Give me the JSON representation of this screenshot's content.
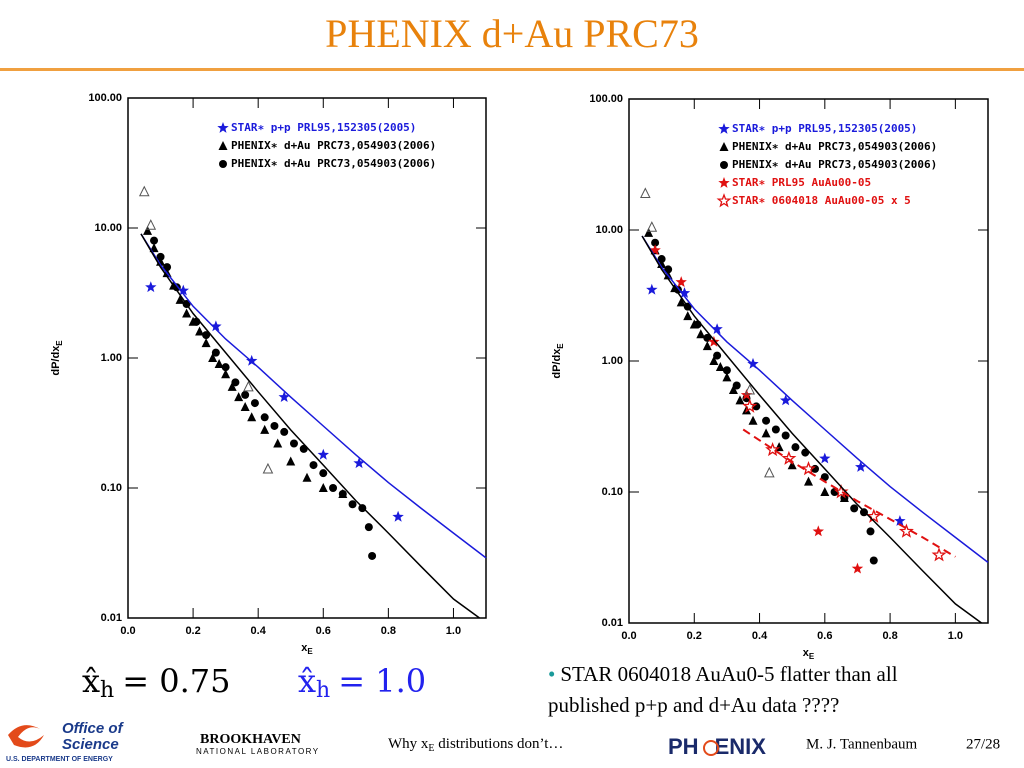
{
  "title": "PHENIX d+Au PRC73",
  "chart_data": [
    {
      "type": "scatter",
      "log_y": true,
      "xlabel": "x",
      "xlabel_sub": "E",
      "ylabel": "dP/dx",
      "ylabel_sub": "E",
      "xlim": [
        0,
        1.1
      ],
      "ylim": [
        0.01,
        100
      ],
      "xticks": [
        {
          "value": 0,
          "label": "0.0"
        },
        0.2,
        0.4,
        0.6,
        0.8,
        {
          "value": 1,
          "label": "1.0"
        }
      ],
      "yticks": [
        {
          "value": 0.01,
          "label": "0.01"
        },
        {
          "value": 0.1,
          "label": "0.10"
        },
        {
          "value": 1,
          "label": "1.00"
        },
        {
          "value": 10,
          "label": "10.00"
        },
        {
          "value": 100,
          "label": "100.00"
        }
      ],
      "legend": "upper right",
      "series": [
        {
          "name": "STAR∗ p+p PRL95,152305(2005)",
          "color": "#1a1adb",
          "marker": "star",
          "x": [
            0.07,
            0.17,
            0.27,
            0.38,
            0.48,
            0.6,
            0.71,
            0.83
          ],
          "values": [
            3.5,
            3.3,
            1.75,
            0.95,
            0.5,
            0.18,
            0.155,
            0.06
          ]
        },
        {
          "name": "PHENIX∗ d+Au PRC73,054903(2006)",
          "color": "#000000",
          "marker": "triangle",
          "x": [
            0.06,
            0.08,
            0.1,
            0.12,
            0.14,
            0.16,
            0.18,
            0.2,
            0.22,
            0.24,
            0.26,
            0.28,
            0.3,
            0.32,
            0.34,
            0.36,
            0.38,
            0.42,
            0.46,
            0.5,
            0.55,
            0.6,
            0.66
          ],
          "values": [
            9.5,
            7,
            5.5,
            4.5,
            3.6,
            2.8,
            2.2,
            1.9,
            1.6,
            1.3,
            1,
            0.9,
            0.75,
            0.6,
            0.5,
            0.42,
            0.35,
            0.28,
            0.22,
            0.16,
            0.12,
            0.1,
            0.09
          ]
        },
        {
          "name": "PHENIX∗ d+Au PRC73,054903(2006)",
          "color": "#000000",
          "marker": "circle",
          "x": [
            0.08,
            0.1,
            0.12,
            0.15,
            0.18,
            0.21,
            0.24,
            0.27,
            0.3,
            0.33,
            0.36,
            0.39,
            0.42,
            0.45,
            0.48,
            0.51,
            0.54,
            0.57,
            0.6,
            0.63,
            0.66,
            0.69,
            0.72,
            0.74,
            0.75
          ],
          "values": [
            8,
            6,
            5,
            3.5,
            2.6,
            1.9,
            1.5,
            1.1,
            0.85,
            0.65,
            0.52,
            0.45,
            0.35,
            0.3,
            0.27,
            0.22,
            0.2,
            0.15,
            0.13,
            0.1,
            0.09,
            0.075,
            0.07,
            0.05,
            0.03
          ]
        },
        {
          "color": "#555555",
          "marker": "open-triangle",
          "x": [
            0.05,
            0.07,
            0.37,
            0.43
          ],
          "values": [
            19,
            10.5,
            0.6,
            0.14
          ]
        },
        {
          "color": "#1a1adb",
          "marker": "line",
          "x": [
            0.04,
            0.1,
            0.2,
            0.3,
            0.4,
            0.5,
            0.6,
            0.7,
            0.8,
            0.9,
            1.0,
            1.1
          ],
          "values": [
            9,
            5.2,
            2.5,
            1.4,
            0.85,
            0.5,
            0.3,
            0.18,
            0.11,
            0.07,
            0.045,
            0.029
          ]
        },
        {
          "color": "#000000",
          "marker": "line",
          "x": [
            0.04,
            0.1,
            0.2,
            0.3,
            0.4,
            0.5,
            0.6,
            0.7,
            0.8,
            0.9,
            1.0,
            1.08
          ],
          "values": [
            9,
            5,
            2.2,
            1.1,
            0.55,
            0.28,
            0.15,
            0.08,
            0.045,
            0.025,
            0.014,
            0.01
          ]
        }
      ]
    },
    {
      "type": "scatter",
      "log_y": true,
      "xlabel": "x",
      "xlabel_sub": "E",
      "ylabel": "dP/dx",
      "ylabel_sub": "E",
      "xlim": [
        0,
        1.1
      ],
      "ylim": [
        0.01,
        100
      ],
      "xticks": [
        {
          "value": 0,
          "label": "0.0"
        },
        0.2,
        0.4,
        0.6,
        0.8,
        {
          "value": 1,
          "label": "1.0"
        }
      ],
      "yticks": [
        {
          "value": 0.01,
          "label": "0.01"
        },
        {
          "value": 0.1,
          "label": "0.10"
        },
        {
          "value": 1,
          "label": "1.00"
        },
        {
          "value": 10,
          "label": "10.00"
        },
        {
          "value": 100,
          "label": "100.00"
        }
      ],
      "legend": "upper right",
      "series": [
        {
          "name": "STAR∗ p+p PRL95,152305(2005)",
          "color": "#1a1adb",
          "marker": "star",
          "x": [
            0.07,
            0.17,
            0.27,
            0.38,
            0.48,
            0.6,
            0.71,
            0.83
          ],
          "values": [
            3.5,
            3.3,
            1.75,
            0.95,
            0.5,
            0.18,
            0.155,
            0.06
          ]
        },
        {
          "name": "PHENIX∗ d+Au PRC73,054903(2006)",
          "color": "#000000",
          "marker": "triangle",
          "x": [
            0.06,
            0.08,
            0.1,
            0.12,
            0.14,
            0.16,
            0.18,
            0.2,
            0.22,
            0.24,
            0.26,
            0.28,
            0.3,
            0.32,
            0.34,
            0.36,
            0.38,
            0.42,
            0.46,
            0.5,
            0.55,
            0.6,
            0.66
          ],
          "values": [
            9.5,
            7,
            5.5,
            4.5,
            3.6,
            2.8,
            2.2,
            1.9,
            1.6,
            1.3,
            1,
            0.9,
            0.75,
            0.6,
            0.5,
            0.42,
            0.35,
            0.28,
            0.22,
            0.16,
            0.12,
            0.1,
            0.09
          ]
        },
        {
          "name": "PHENIX∗ d+Au PRC73,054903(2006)",
          "color": "#000000",
          "marker": "circle",
          "x": [
            0.08,
            0.1,
            0.12,
            0.15,
            0.18,
            0.21,
            0.24,
            0.27,
            0.3,
            0.33,
            0.36,
            0.39,
            0.42,
            0.45,
            0.48,
            0.51,
            0.54,
            0.57,
            0.6,
            0.63,
            0.66,
            0.69,
            0.72,
            0.74,
            0.75
          ],
          "values": [
            8,
            6,
            5,
            3.5,
            2.6,
            1.9,
            1.5,
            1.1,
            0.85,
            0.65,
            0.52,
            0.45,
            0.35,
            0.3,
            0.27,
            0.22,
            0.2,
            0.15,
            0.13,
            0.1,
            0.09,
            0.075,
            0.07,
            0.05,
            0.03
          ]
        },
        {
          "name": "STAR∗ PRL95 AuAu00-05",
          "color": "#e01010",
          "marker": "star",
          "x": [
            0.08,
            0.16,
            0.26,
            0.36,
            0.58,
            0.7
          ],
          "values": [
            7,
            4,
            1.4,
            0.55,
            0.05,
            0.026
          ]
        },
        {
          "name": "STAR∗ 0604018 AuAu00-05 x 5",
          "color": "#e01010",
          "marker": "open-star",
          "x": [
            0.37,
            0.44,
            0.49,
            0.55,
            0.65,
            0.75,
            0.85,
            0.95
          ],
          "values": [
            0.45,
            0.21,
            0.18,
            0.15,
            0.1,
            0.065,
            0.05,
            0.033
          ]
        },
        {
          "color": "#555555",
          "marker": "open-triangle",
          "x": [
            0.05,
            0.07,
            0.37,
            0.43
          ],
          "values": [
            19,
            10.5,
            0.6,
            0.14
          ]
        },
        {
          "color": "#1a1adb",
          "marker": "line",
          "x": [
            0.04,
            0.1,
            0.2,
            0.3,
            0.4,
            0.5,
            0.6,
            0.7,
            0.8,
            0.9,
            1.0,
            1.1
          ],
          "values": [
            9,
            5.2,
            2.5,
            1.4,
            0.85,
            0.5,
            0.3,
            0.18,
            0.11,
            0.07,
            0.045,
            0.029
          ]
        },
        {
          "color": "#000000",
          "marker": "line",
          "x": [
            0.04,
            0.1,
            0.2,
            0.3,
            0.4,
            0.5,
            0.6,
            0.7,
            0.8,
            0.9,
            1.0,
            1.08
          ],
          "values": [
            9,
            5,
            2.2,
            1.1,
            0.55,
            0.28,
            0.15,
            0.08,
            0.045,
            0.025,
            0.014,
            0.01
          ]
        },
        {
          "color": "#e01010",
          "marker": "dashed-line",
          "x": [
            0.35,
            0.5,
            0.6,
            0.7,
            0.8,
            0.9,
            1.0
          ],
          "values": [
            0.3,
            0.17,
            0.12,
            0.085,
            0.062,
            0.045,
            0.032
          ]
        }
      ]
    }
  ],
  "formulas": [
    {
      "var": "x̂",
      "sub": "h",
      "rhs": "= 0.75"
    },
    {
      "var": "x̂",
      "sub": "h",
      "rhs": "= 1.0"
    }
  ],
  "bullet": {
    "mark": "•",
    "lines": [
      "STAR 0604018 AuAu0-5 flatter than all",
      "published p+p and d+Au data ????"
    ]
  },
  "footer": {
    "office": "Office of",
    "science": "Science",
    "doe": "U.S. DEPARTMENT OF ENERGY",
    "bnl": "BROOKHAVEN",
    "bnl_sub": "NATIONAL LABORATORY",
    "talk": "Why x",
    "talk_sub": "E",
    "talk_rest": " distributions don’t…",
    "phenix_a": "PH",
    "phenix_b": "ENIX",
    "author": "M. J. Tannenbaum",
    "page": "27/28"
  }
}
